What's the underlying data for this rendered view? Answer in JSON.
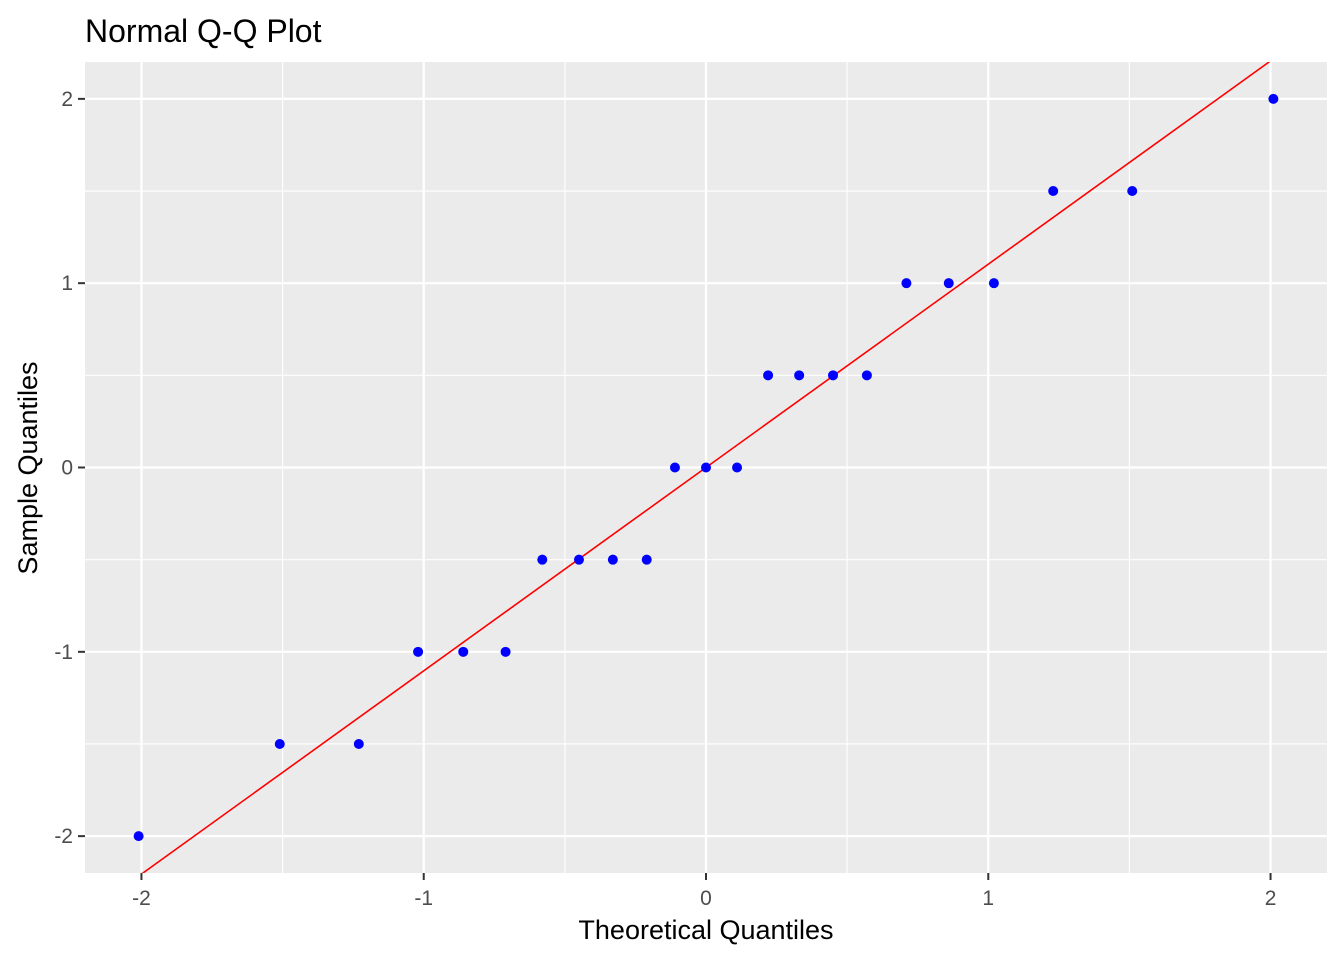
{
  "chart_data": {
    "type": "scatter",
    "title": "Normal Q-Q Plot",
    "xlabel": "Theoretical Quantiles",
    "ylabel": "Sample Quantiles",
    "xlim": [
      -2.2,
      2.2
    ],
    "ylim": [
      -2.2,
      2.2
    ],
    "x_ticks": [
      -2,
      -1,
      0,
      1,
      2
    ],
    "y_ticks": [
      -2,
      -1,
      0,
      1,
      2
    ],
    "x_tick_labels": [
      "-2",
      "-1",
      "0",
      "1",
      "2"
    ],
    "y_tick_labels": [
      "-2",
      "-1",
      "0",
      "1",
      "2"
    ],
    "grid": true,
    "legend": "none",
    "colors": {
      "panel_background": "#ebebeb",
      "grid": "#ffffff",
      "points": "#0000ff",
      "reference_line": "#ff0000",
      "tick_marks": "#333333"
    },
    "points": {
      "x": [
        -2.01,
        -1.51,
        -1.23,
        -1.02,
        -0.86,
        -0.71,
        -0.58,
        -0.45,
        -0.33,
        -0.21,
        -0.11,
        0.0,
        0.11,
        0.22,
        0.33,
        0.45,
        0.57,
        0.71,
        0.86,
        1.02,
        1.23,
        1.51,
        2.01
      ],
      "y": [
        -2,
        -1.5,
        -1.5,
        -1,
        -1,
        -1,
        -0.5,
        -0.5,
        -0.5,
        -0.5,
        0,
        0,
        0,
        0.5,
        0.5,
        0.5,
        0.5,
        1,
        1,
        1,
        1.5,
        1.5,
        2
      ]
    },
    "reference_line": {
      "intercept": 0.0,
      "slope": 1.103
    }
  }
}
